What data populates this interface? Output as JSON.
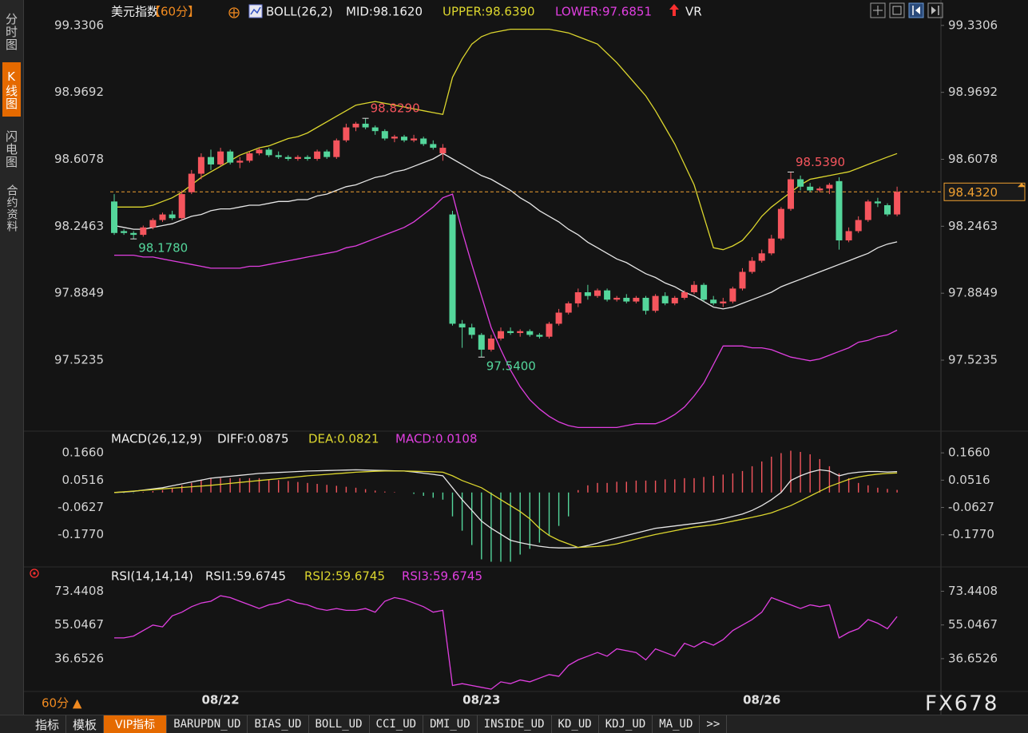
{
  "sidebar": [
    "分时图",
    "K线图",
    "闪电图",
    "合约资料"
  ],
  "chart_data": [
    {
      "type": "candlestick",
      "title": "美元指数",
      "period": "【60分】",
      "readouts": [
        "BOLL(26,2)",
        "MID:98.1620",
        "UPPER:98.6390",
        "LOWER:97.6851",
        "VR"
      ],
      "categories": [
        null,
        null,
        null,
        null,
        null,
        null,
        null,
        null,
        null,
        null,
        null,
        "08/22",
        null,
        null,
        null,
        null,
        null,
        null,
        null,
        null,
        null,
        null,
        null,
        null,
        null,
        null,
        null,
        null,
        null,
        null,
        null,
        null,
        null,
        null,
        null,
        null,
        null,
        null,
        "08/23",
        null,
        null,
        null,
        null,
        null,
        null,
        null,
        null,
        null,
        null,
        null,
        null,
        null,
        null,
        null,
        null,
        null,
        null,
        null,
        null,
        null,
        null,
        null,
        null,
        null,
        null,
        null,
        null,
        "08/26",
        null,
        null,
        null,
        null,
        null,
        null,
        null,
        null,
        null,
        null,
        null,
        null,
        null,
        null
      ],
      "open": [
        98.38,
        98.22,
        98.21,
        98.2,
        98.24,
        98.28,
        98.31,
        98.29,
        98.43,
        98.53,
        98.62,
        98.58,
        98.65,
        98.59,
        98.6,
        98.64,
        98.66,
        98.63,
        98.62,
        98.61,
        98.62,
        98.61,
        98.65,
        98.62,
        98.71,
        98.78,
        98.8,
        98.78,
        98.76,
        98.72,
        98.73,
        98.71,
        98.72,
        98.69,
        98.64,
        98.31,
        97.72,
        97.7,
        97.66,
        97.58,
        97.64,
        97.68,
        97.67,
        97.68,
        97.66,
        97.65,
        97.72,
        97.78,
        97.83,
        97.89,
        97.87,
        97.9,
        97.85,
        97.86,
        97.84,
        97.86,
        97.79,
        97.87,
        97.83,
        97.86,
        97.89,
        97.93,
        97.85,
        97.83,
        97.84,
        97.91,
        98.0,
        98.06,
        98.1,
        98.18,
        98.34,
        98.5,
        98.46,
        98.44,
        98.45,
        98.49,
        98.17,
        98.22,
        98.28,
        98.38,
        98.36,
        98.31
      ],
      "high": [
        98.42,
        98.23,
        98.22,
        98.25,
        98.29,
        98.32,
        98.33,
        98.44,
        98.55,
        98.64,
        98.66,
        98.67,
        98.66,
        98.62,
        98.65,
        98.67,
        98.67,
        98.65,
        98.63,
        98.63,
        98.63,
        98.66,
        98.66,
        98.72,
        98.8,
        98.81,
        98.829,
        98.79,
        98.77,
        98.74,
        98.74,
        98.74,
        98.73,
        98.71,
        98.69,
        98.33,
        97.74,
        97.72,
        97.67,
        97.66,
        97.7,
        97.7,
        97.69,
        97.69,
        97.67,
        97.73,
        97.8,
        97.84,
        97.91,
        97.93,
        97.91,
        97.91,
        97.87,
        97.88,
        97.87,
        97.87,
        97.88,
        97.89,
        97.87,
        97.9,
        97.95,
        97.94,
        97.87,
        97.86,
        97.92,
        98.02,
        98.08,
        98.12,
        98.2,
        98.35,
        98.539,
        98.52,
        98.48,
        98.46,
        98.48,
        98.51,
        98.24,
        98.3,
        98.39,
        98.4,
        98.37,
        98.46
      ],
      "low": [
        98.2,
        98.2,
        98.178,
        98.19,
        98.23,
        98.27,
        98.28,
        98.28,
        98.42,
        98.5,
        98.55,
        98.57,
        98.58,
        98.56,
        98.59,
        98.63,
        98.62,
        98.61,
        98.6,
        98.6,
        98.6,
        98.6,
        98.61,
        98.61,
        98.7,
        98.76,
        98.77,
        98.74,
        98.71,
        98.7,
        98.7,
        98.7,
        98.68,
        98.66,
        98.6,
        97.71,
        97.59,
        97.64,
        97.54,
        97.57,
        97.63,
        97.66,
        97.65,
        97.65,
        97.64,
        97.64,
        97.71,
        97.77,
        97.81,
        97.85,
        97.86,
        97.84,
        97.84,
        97.83,
        97.83,
        97.77,
        97.78,
        97.82,
        97.82,
        97.85,
        97.88,
        97.84,
        97.82,
        97.81,
        97.83,
        97.9,
        97.99,
        98.05,
        98.09,
        98.17,
        98.33,
        98.44,
        98.43,
        98.43,
        98.42,
        98.12,
        98.16,
        98.21,
        98.27,
        98.35,
        98.3,
        98.3
      ],
      "close": [
        98.21,
        98.21,
        98.2,
        98.24,
        98.28,
        98.31,
        98.29,
        98.42,
        98.53,
        98.62,
        98.58,
        98.65,
        98.59,
        98.6,
        98.64,
        98.66,
        98.63,
        98.62,
        98.61,
        98.62,
        98.61,
        98.65,
        98.62,
        98.71,
        98.78,
        98.8,
        98.78,
        98.76,
        98.72,
        98.73,
        98.71,
        98.72,
        98.69,
        98.67,
        98.67,
        97.72,
        97.7,
        97.66,
        97.58,
        97.64,
        97.68,
        97.67,
        97.68,
        97.66,
        97.65,
        97.72,
        97.78,
        97.83,
        97.89,
        97.87,
        97.9,
        97.85,
        97.86,
        97.84,
        97.86,
        97.79,
        97.87,
        97.83,
        97.86,
        97.89,
        97.93,
        97.85,
        97.83,
        97.84,
        97.91,
        98.0,
        98.06,
        98.1,
        98.18,
        98.34,
        98.5,
        98.46,
        98.44,
        98.45,
        98.47,
        98.17,
        98.22,
        98.28,
        98.38,
        98.37,
        98.31,
        98.432
      ],
      "up_color": "#f5555d",
      "down_color": "#54d69b",
      "series": [
        {
          "color": "#e6e6e6",
          "values": [
            98.25,
            98.24,
            98.23,
            98.23,
            98.24,
            98.25,
            98.26,
            98.28,
            98.3,
            98.31,
            98.33,
            98.34,
            98.34,
            98.35,
            98.36,
            98.36,
            98.37,
            98.38,
            98.38,
            98.39,
            98.39,
            98.41,
            98.42,
            98.44,
            98.46,
            98.47,
            98.49,
            98.51,
            98.52,
            98.54,
            98.55,
            98.57,
            98.59,
            98.61,
            98.64,
            98.61,
            98.58,
            98.55,
            98.52,
            98.5,
            98.47,
            98.44,
            98.4,
            98.37,
            98.33,
            98.3,
            98.27,
            98.23,
            98.2,
            98.16,
            98.13,
            98.1,
            98.07,
            98.05,
            98.02,
            97.99,
            97.97,
            97.94,
            97.92,
            97.89,
            97.87,
            97.84,
            97.81,
            97.8,
            97.81,
            97.83,
            97.85,
            97.87,
            97.89,
            97.92,
            97.94,
            97.96,
            97.98,
            98.0,
            98.02,
            98.04,
            98.06,
            98.08,
            98.1,
            98.13,
            98.15,
            98.162
          ]
        },
        {
          "color": "#dcd62e",
          "values": [
            98.35,
            98.35,
            98.35,
            98.35,
            98.36,
            98.38,
            98.4,
            98.43,
            98.47,
            98.51,
            98.54,
            98.57,
            98.6,
            98.63,
            98.65,
            98.67,
            98.68,
            98.7,
            98.72,
            98.73,
            98.75,
            98.78,
            98.81,
            98.84,
            98.87,
            98.9,
            98.91,
            98.92,
            98.91,
            98.9,
            98.89,
            98.88,
            98.87,
            98.86,
            98.85,
            99.05,
            99.15,
            99.23,
            99.27,
            99.29,
            99.3,
            99.31,
            99.31,
            99.31,
            99.31,
            99.31,
            99.3,
            99.29,
            99.27,
            99.25,
            99.23,
            99.18,
            99.13,
            99.07,
            99.01,
            98.95,
            98.87,
            98.78,
            98.69,
            98.58,
            98.47,
            98.3,
            98.13,
            98.12,
            98.14,
            98.17,
            98.23,
            98.3,
            98.35,
            98.39,
            98.43,
            98.47,
            98.5,
            98.51,
            98.52,
            98.53,
            98.54,
            98.56,
            98.58,
            98.6,
            98.62,
            98.639
          ]
        },
        {
          "color": "#e03fe0",
          "values": [
            98.09,
            98.09,
            98.09,
            98.08,
            98.08,
            98.07,
            98.06,
            98.05,
            98.04,
            98.03,
            98.02,
            98.02,
            98.02,
            98.02,
            98.03,
            98.03,
            98.04,
            98.05,
            98.06,
            98.07,
            98.08,
            98.09,
            98.1,
            98.11,
            98.13,
            98.14,
            98.16,
            98.18,
            98.2,
            98.22,
            98.24,
            98.27,
            98.31,
            98.35,
            98.4,
            98.42,
            98.22,
            98.04,
            97.87,
            97.7,
            97.58,
            97.47,
            97.38,
            97.31,
            97.26,
            97.22,
            97.19,
            97.17,
            97.16,
            97.16,
            97.16,
            97.16,
            97.16,
            97.17,
            97.18,
            97.18,
            97.18,
            97.2,
            97.23,
            97.27,
            97.33,
            97.4,
            97.5,
            97.6,
            97.6,
            97.6,
            97.59,
            97.59,
            97.58,
            97.56,
            97.54,
            97.53,
            97.52,
            97.53,
            97.55,
            97.57,
            97.59,
            97.62,
            97.63,
            97.65,
            97.66,
            97.6851
          ]
        }
      ],
      "ylim": [
        97.14,
        99.36
      ],
      "yticks": [
        99.3306,
        98.9692,
        98.6078,
        98.2463,
        97.8849,
        97.5235
      ],
      "last_price": {
        "value": 98.432,
        "label": "98.4320"
      },
      "last_price_color": "#f0a030",
      "annotations": [
        {
          "value": 98.829,
          "label": "98.8290",
          "color": "#f5555d"
        },
        {
          "value": 98.178,
          "label": "98.1780",
          "color": "#54d69b"
        },
        {
          "value": 97.54,
          "label": "97.5400",
          "color": "#54d69b"
        },
        {
          "value": 98.539,
          "label": "98.5390",
          "color": "#f5555d"
        }
      ]
    },
    {
      "type": "macd",
      "title": "MACD(26,12,9)",
      "readouts": [
        "DIFF:0.0875",
        "DEA:0.0821",
        "MACD:0.0108"
      ],
      "series": [
        {
          "color": "#e6e6e6",
          "values": [
            0.0,
            0.002,
            0.005,
            0.01,
            0.015,
            0.02,
            0.028,
            0.036,
            0.044,
            0.052,
            0.06,
            0.064,
            0.068,
            0.072,
            0.076,
            0.08,
            0.082,
            0.084,
            0.086,
            0.088,
            0.09,
            0.091,
            0.092,
            0.093,
            0.094,
            0.095,
            0.094,
            0.093,
            0.092,
            0.091,
            0.09,
            0.086,
            0.081,
            0.076,
            0.07,
            0.02,
            -0.03,
            -0.075,
            -0.12,
            -0.15,
            -0.175,
            -0.2,
            -0.21,
            -0.218,
            -0.225,
            -0.23,
            -0.232,
            -0.232,
            -0.23,
            -0.222,
            -0.212,
            -0.2,
            -0.19,
            -0.18,
            -0.17,
            -0.16,
            -0.15,
            -0.145,
            -0.14,
            -0.135,
            -0.13,
            -0.125,
            -0.118,
            -0.11,
            -0.1,
            -0.09,
            -0.075,
            -0.055,
            -0.03,
            0.0,
            0.05,
            0.07,
            0.085,
            0.095,
            0.09,
            0.07,
            0.08,
            0.085,
            0.088,
            0.088,
            0.086,
            0.0875
          ]
        },
        {
          "color": "#dcd62e",
          "values": [
            0.0,
            0.003,
            0.006,
            0.009,
            0.012,
            0.015,
            0.018,
            0.021,
            0.024,
            0.027,
            0.03,
            0.034,
            0.038,
            0.042,
            0.046,
            0.05,
            0.054,
            0.058,
            0.062,
            0.066,
            0.07,
            0.073,
            0.076,
            0.079,
            0.082,
            0.085,
            0.087,
            0.089,
            0.09,
            0.09,
            0.09,
            0.089,
            0.088,
            0.087,
            0.085,
            0.07,
            0.05,
            0.035,
            0.02,
            -0.005,
            -0.03,
            -0.055,
            -0.08,
            -0.11,
            -0.15,
            -0.18,
            -0.2,
            -0.215,
            -0.23,
            -0.228,
            -0.226,
            -0.222,
            -0.215,
            -0.205,
            -0.195,
            -0.185,
            -0.176,
            -0.168,
            -0.16,
            -0.152,
            -0.145,
            -0.14,
            -0.135,
            -0.128,
            -0.12,
            -0.112,
            -0.104,
            -0.095,
            -0.085,
            -0.07,
            -0.055,
            -0.035,
            -0.015,
            0.005,
            0.025,
            0.04,
            0.055,
            0.065,
            0.072,
            0.077,
            0.08,
            0.0821
          ]
        }
      ],
      "bars": {
        "up_color": "#f5555d",
        "down_color": "#54d69b",
        "values": [
          0.0,
          -0.002,
          -0.002,
          0.002,
          0.006,
          0.01,
          0.02,
          0.03,
          0.04,
          0.05,
          0.06,
          0.06,
          0.06,
          0.06,
          0.06,
          0.06,
          0.056,
          0.052,
          0.048,
          0.044,
          0.04,
          0.036,
          0.032,
          0.028,
          0.024,
          0.02,
          0.014,
          0.008,
          0.004,
          0.002,
          0.0,
          -0.006,
          -0.014,
          -0.022,
          -0.03,
          -0.1,
          -0.16,
          -0.22,
          -0.28,
          -0.29,
          -0.29,
          -0.29,
          -0.26,
          -0.236,
          -0.21,
          -0.18,
          -0.14,
          -0.1,
          0.01,
          0.03,
          0.04,
          0.04,
          0.045,
          0.045,
          0.05,
          0.05,
          0.05,
          0.055,
          0.055,
          0.06,
          0.06,
          0.065,
          0.07,
          0.075,
          0.08,
          0.09,
          0.11,
          0.13,
          0.15,
          0.165,
          0.175,
          0.17,
          0.16,
          0.14,
          0.11,
          0.08,
          0.06,
          0.04,
          0.03,
          0.02,
          0.015,
          0.0108
        ]
      },
      "ylim": [
        -0.295,
        0.2
      ],
      "yticks": [
        {
          "value": 0.166,
          "label": "0.1660"
        },
        0.0516,
        -0.0627,
        {
          "value": -0.177,
          "label": "-0.1770"
        }
      ]
    },
    {
      "type": "line",
      "title": "RSI(14,14,14)",
      "readouts": [
        "RSI1:59.6745",
        "RSI2:59.6745",
        "RSI3:59.6745"
      ],
      "series": [
        {
          "color": "#e03fe0",
          "values": [
            48,
            48,
            49,
            52,
            55,
            54,
            60,
            62,
            65,
            67,
            68,
            71,
            70,
            68,
            66,
            64,
            66,
            67,
            69,
            67,
            66,
            64,
            63,
            64,
            63,
            63,
            64,
            62,
            68,
            70,
            69,
            67,
            65,
            62,
            63,
            22,
            23,
            22,
            21,
            20,
            24,
            23,
            25,
            24,
            26,
            28,
            27,
            33,
            36,
            38,
            40,
            38,
            42,
            41,
            40,
            36,
            42,
            40,
            38,
            45,
            43,
            46,
            44,
            47,
            52,
            55,
            58,
            62,
            70,
            68,
            66,
            64,
            66,
            65,
            66,
            48,
            51,
            53,
            58,
            56,
            53,
            59.6745
          ]
        }
      ],
      "ylim": [
        17,
        78
      ],
      "yticks": [
        73.4408,
        55.0467,
        36.6526
      ]
    }
  ],
  "footer": {
    "period": "60分 ▲",
    "watermark": "FX678",
    "tabs": [
      "指标",
      "模板",
      "VIP指标",
      "BARUPDN_UD",
      "BIAS_UD",
      "BOLL_UD",
      "CCI_UD",
      "DMI_UD",
      "INSIDE_UD",
      "KD_UD",
      "KDJ_UD",
      "MA_UD",
      ">>"
    ]
  }
}
